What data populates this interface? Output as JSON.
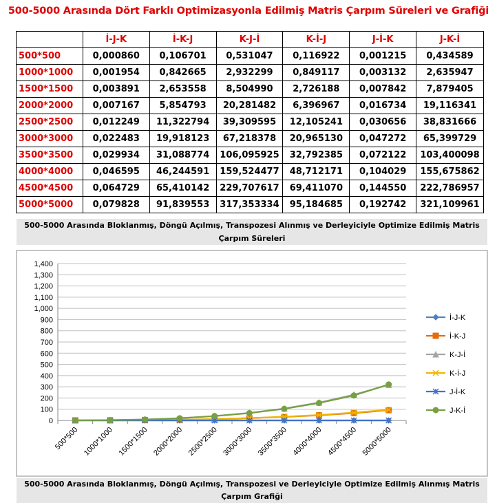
{
  "title": "500-5000 Arasında Dört Farklı Optimizasyonla Edilmiş Matris Çarpım Süreleri ve Grafiği",
  "table": {
    "headers": [
      "",
      "İ-J-K",
      "İ-K-J",
      "K-J-İ",
      "K-İ-J",
      "J-İ-K",
      "J-K-İ"
    ],
    "rows": [
      [
        "500*500",
        "0,000860",
        "0,106701",
        "0,531047",
        "0,116922",
        "0,001215",
        "0,434589"
      ],
      [
        "1000*1000",
        "0,001954",
        "0,842665",
        "2,932299",
        "0,849117",
        "0,003132",
        "2,635947"
      ],
      [
        "1500*1500",
        "0,003891",
        "2,653558",
        "8,504990",
        "2,726188",
        "0,007842",
        "7,879405"
      ],
      [
        "2000*2000",
        "0,007167",
        "5,854793",
        "20,281482",
        "6,396967",
        "0,016734",
        "19,116341"
      ],
      [
        "2500*2500",
        "0,012249",
        "11,322794",
        "39,309595",
        "12,105241",
        "0,030656",
        "38,831666"
      ],
      [
        "3000*3000",
        "0,022483",
        "19,918123",
        "67,218378",
        "20,965130",
        "0,047272",
        "65,399729"
      ],
      [
        "3500*3500",
        "0,029934",
        "31,088774",
        "106,095925",
        "32,792385",
        "0,072122",
        "103,400098"
      ],
      [
        "4000*4000",
        "0,046595",
        "46,244591",
        "159,524477",
        "48,712171",
        "0,104029",
        "155,675862"
      ],
      [
        "4500*4500",
        "0,064729",
        "65,410142",
        "229,707617",
        "69,411070",
        "0,144550",
        "222,786957"
      ],
      [
        "5000*5000",
        "0,079828",
        "91,839553",
        "317,353334",
        "95,184685",
        "0,192742",
        "321,109961"
      ]
    ]
  },
  "caption_top": "500-5000 Arasında Bloklanmış, Döngü Açılmış, Transpozesi Alınmış ve Derleyiciyle Optimize Edilmiş Matris Çarpım Süreleri",
  "caption_bottom": "500-5000 Arasında Bloklanmış, Döngü Açılmış, Transpozesi ve Derleyiciyle Optimize Edilmiş Alınmış Matris Çarpım Grafiği",
  "chart_data": {
    "type": "line",
    "categories": [
      "500*500",
      "1000*1000",
      "1500*1500",
      "2000*2000",
      "2500*2500",
      "3000*3000",
      "3500*3500",
      "4000*4000",
      "4500*4500",
      "5000*5000"
    ],
    "ylim": [
      0,
      1400
    ],
    "ytick_step": 100,
    "ytick_labels": [
      "0",
      "100",
      "200",
      "300",
      "400",
      "500",
      "600",
      "700",
      "800",
      "900",
      "1,000",
      "1,100",
      "1,200",
      "1,300",
      "1,400"
    ],
    "grid": true,
    "legend": "right",
    "series": [
      {
        "name": "İ-J-K",
        "color": "#4f81bd",
        "marker": "diamond",
        "values": [
          0.00086,
          0.001954,
          0.003891,
          0.007167,
          0.012249,
          0.022483,
          0.029934,
          0.046595,
          0.064729,
          0.079828
        ]
      },
      {
        "name": "İ-K-J",
        "color": "#e46c0a",
        "marker": "square",
        "values": [
          0.106701,
          0.842665,
          2.653558,
          5.854793,
          11.322794,
          19.918123,
          31.088774,
          46.244591,
          65.410142,
          91.839553
        ]
      },
      {
        "name": "K-J-İ",
        "color": "#a5a5a5",
        "marker": "triangle",
        "values": [
          0.531047,
          2.932299,
          8.50499,
          20.281482,
          39.309595,
          67.218378,
          106.095925,
          159.524477,
          229.707617,
          317.353334
        ]
      },
      {
        "name": "K-İ-J",
        "color": "#f0b400",
        "marker": "x",
        "values": [
          0.116922,
          0.849117,
          2.726188,
          6.396967,
          12.105241,
          20.96513,
          32.792385,
          48.712171,
          69.41107,
          95.184685
        ]
      },
      {
        "name": "J-İ-K",
        "color": "#4472c4",
        "marker": "star",
        "values": [
          0.001215,
          0.003132,
          0.007842,
          0.016734,
          0.030656,
          0.047272,
          0.072122,
          0.104029,
          0.14455,
          0.192742
        ]
      },
      {
        "name": "J-K-İ",
        "color": "#77a043",
        "marker": "circle",
        "values": [
          0.434589,
          2.635947,
          7.879405,
          19.116341,
          38.831666,
          65.399729,
          103.400098,
          155.675862,
          222.786957,
          321.109961
        ]
      }
    ]
  }
}
